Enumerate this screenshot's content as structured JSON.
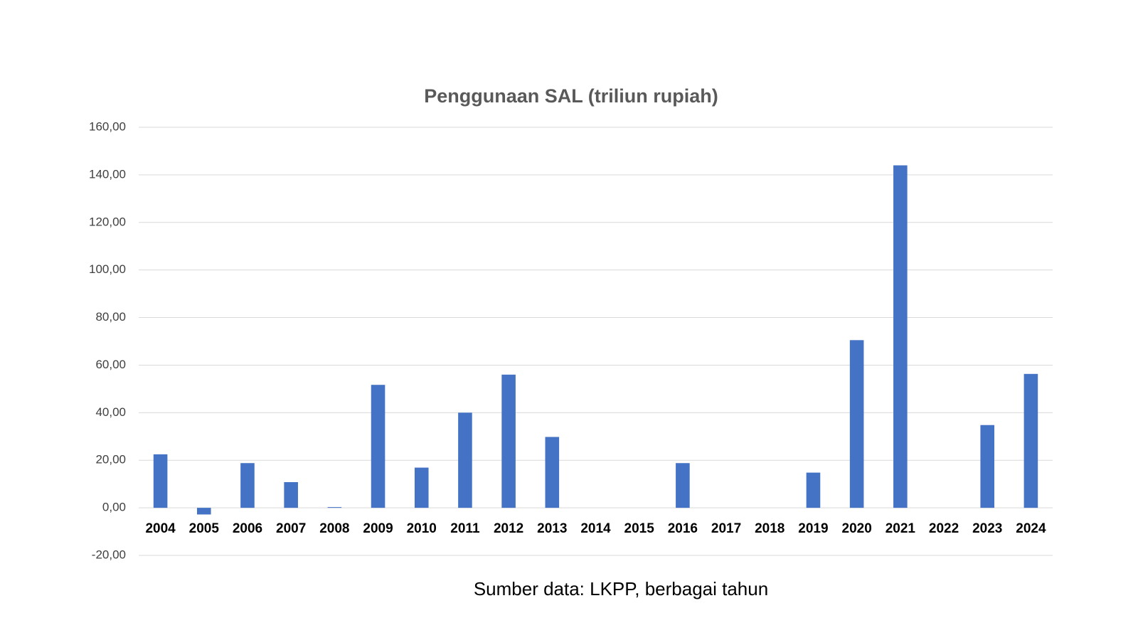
{
  "chart_data": {
    "type": "bar",
    "title": "Penggunaan SAL (triliun rupiah)",
    "source": "Sumber data: LKPP, berbagai tahun",
    "categories": [
      "2004",
      "2005",
      "2006",
      "2007",
      "2008",
      "2009",
      "2010",
      "2011",
      "2012",
      "2013",
      "2014",
      "2015",
      "2016",
      "2017",
      "2018",
      "2019",
      "2020",
      "2021",
      "2022",
      "2023",
      "2024"
    ],
    "values": [
      22.5,
      -2.8,
      18.8,
      10.8,
      0.3,
      51.7,
      16.9,
      40,
      56,
      29.8,
      0,
      0,
      18.8,
      0,
      0,
      14.8,
      70.5,
      144,
      0,
      34.8,
      56.3
    ],
    "color": "#4472c4",
    "ylim": [
      -20,
      160
    ],
    "yticks": [
      {
        "value": -20,
        "label": "-20,00"
      },
      {
        "value": 0,
        "label": "0,00"
      },
      {
        "value": 20,
        "label": "20,00"
      },
      {
        "value": 40,
        "label": "40,00"
      },
      {
        "value": 60,
        "label": "60,00"
      },
      {
        "value": 80,
        "label": "80,00"
      },
      {
        "value": 100,
        "label": "100,00"
      },
      {
        "value": 120,
        "label": "120,00"
      },
      {
        "value": 140,
        "label": "140,00"
      },
      {
        "value": 160,
        "label": "160,00"
      }
    ],
    "grid": true
  }
}
